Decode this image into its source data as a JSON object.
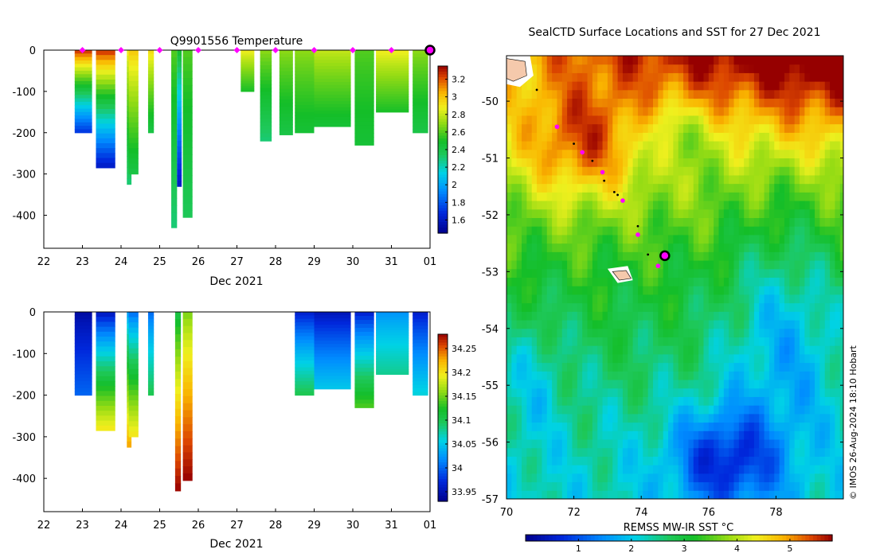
{
  "chart_data": [
    {
      "type": "heatmap",
      "id": "temperature-profile",
      "title": "Q9901556  Temperature",
      "xlabel": "Dec 2021",
      "ylabel": "",
      "xlim": [
        22,
        32
      ],
      "ylim": [
        -480,
        0
      ],
      "xticks": [
        "22",
        "23",
        "24",
        "25",
        "26",
        "27",
        "28",
        "29",
        "30",
        "31",
        "01"
      ],
      "yticks": [
        "0",
        "-100",
        "-200",
        "-300",
        "-400"
      ],
      "colorbar": {
        "min": 1.45,
        "max": 3.35,
        "ticks": [
          "1.6",
          "1.8",
          "2",
          "2.2",
          "2.4",
          "2.6",
          "2.8",
          "3",
          "3.2"
        ]
      },
      "surfacings": [
        23,
        24,
        25,
        26,
        27,
        28,
        29,
        30,
        31
      ],
      "current_position_day": 32,
      "profiles": [
        {
          "x": 22.8,
          "w": 0.45,
          "depth": -200,
          "surface": 3.3,
          "deep": 1.7
        },
        {
          "x": 23.35,
          "w": 0.5,
          "depth": -285,
          "surface": 3.3,
          "deep": 1.6
        },
        {
          "x": 24.15,
          "w": 0.12,
          "depth": -325,
          "surface": 2.9,
          "deep": 2.3
        },
        {
          "x": 24.2,
          "w": 0.25,
          "depth": -300,
          "surface": 3.0,
          "deep": 2.4
        },
        {
          "x": 24.7,
          "w": 0.15,
          "depth": -200,
          "surface": 2.95,
          "deep": 2.4
        },
        {
          "x": 25.3,
          "w": 0.15,
          "depth": -430,
          "surface": 2.6,
          "deep": 2.3
        },
        {
          "x": 25.45,
          "w": 0.12,
          "depth": -330,
          "surface": 2.5,
          "deep": 1.6
        },
        {
          "x": 25.6,
          "w": 0.25,
          "depth": -405,
          "surface": 2.6,
          "deep": 2.35
        },
        {
          "x": 27.1,
          "w": 0.35,
          "depth": -100,
          "surface": 2.9,
          "deep": 2.5
        },
        {
          "x": 27.6,
          "w": 0.3,
          "depth": -220,
          "surface": 2.7,
          "deep": 2.3
        },
        {
          "x": 28.1,
          "w": 0.35,
          "depth": -205,
          "surface": 2.7,
          "deep": 2.4
        },
        {
          "x": 28.5,
          "w": 0.5,
          "depth": -200,
          "surface": 2.7,
          "deep": 2.45
        },
        {
          "x": 29.0,
          "w": 0.95,
          "depth": -185,
          "surface": 2.8,
          "deep": 2.45
        },
        {
          "x": 30.05,
          "w": 0.5,
          "depth": -230,
          "surface": 2.6,
          "deep": 2.45
        },
        {
          "x": 30.6,
          "w": 0.85,
          "depth": -150,
          "surface": 2.9,
          "deep": 2.5
        },
        {
          "x": 31.55,
          "w": 0.4,
          "depth": -200,
          "surface": 2.7,
          "deep": 2.4
        }
      ]
    },
    {
      "type": "heatmap",
      "id": "salinity-profile",
      "title": "",
      "xlabel": "Dec 2021",
      "ylabel": "",
      "xlim": [
        22,
        32
      ],
      "ylim": [
        -480,
        0
      ],
      "xticks": [
        "22",
        "23",
        "24",
        "25",
        "26",
        "27",
        "28",
        "29",
        "30",
        "31",
        "01"
      ],
      "yticks": [
        "0",
        "-100",
        "-200",
        "-300",
        "-400"
      ],
      "colorbar": {
        "min": 33.93,
        "max": 34.28,
        "ticks": [
          "33.95",
          "34",
          "34.05",
          "34.1",
          "34.15",
          "34.2",
          "34.25"
        ]
      },
      "profiles": [
        {
          "x": 22.8,
          "w": 0.45,
          "depth": -200,
          "surface": 33.94,
          "deep": 34.0
        },
        {
          "x": 23.35,
          "w": 0.5,
          "depth": -285,
          "surface": 33.95,
          "deep": 34.2
        },
        {
          "x": 24.15,
          "w": 0.12,
          "depth": -325,
          "surface": 34.02,
          "deep": 34.23
        },
        {
          "x": 24.2,
          "w": 0.25,
          "depth": -300,
          "surface": 34.0,
          "deep": 34.2
        },
        {
          "x": 24.7,
          "w": 0.15,
          "depth": -200,
          "surface": 34.0,
          "deep": 34.1
        },
        {
          "x": 25.4,
          "w": 0.15,
          "depth": -430,
          "surface": 34.1,
          "deep": 34.28
        },
        {
          "x": 25.6,
          "w": 0.25,
          "depth": -405,
          "surface": 34.15,
          "deep": 34.28
        },
        {
          "x": 28.5,
          "w": 0.5,
          "depth": -200,
          "surface": 33.96,
          "deep": 34.1
        },
        {
          "x": 29.0,
          "w": 0.95,
          "depth": -185,
          "surface": 33.95,
          "deep": 34.05
        },
        {
          "x": 30.05,
          "w": 0.5,
          "depth": -230,
          "surface": 33.96,
          "deep": 34.14
        },
        {
          "x": 30.6,
          "w": 0.85,
          "depth": -150,
          "surface": 34.02,
          "deep": 34.08
        },
        {
          "x": 31.55,
          "w": 0.4,
          "depth": -200,
          "surface": 33.96,
          "deep": 34.06
        }
      ]
    },
    {
      "type": "heatmap",
      "id": "sst-map",
      "title": "SealCTD Surface Locations and SST for 27 Dec 2021",
      "xlabel": "",
      "ylabel": "",
      "xlim": [
        70,
        80
      ],
      "ylim": [
        -57,
        -49.2
      ],
      "xticks": [
        "70",
        "72",
        "74",
        "76",
        "78"
      ],
      "yticks": [
        "-50",
        "-51",
        "-52",
        "-53",
        "-54",
        "-55",
        "-56",
        "-57"
      ],
      "colorbar_label": "REMSS MW-IR SST °C",
      "colorbar": {
        "min": 0,
        "max": 5.8,
        "ticks": [
          "1",
          "2",
          "3",
          "4",
          "5"
        ]
      },
      "surface_locations_magenta": [
        {
          "lon": 71.5,
          "lat": -50.45
        },
        {
          "lon": 72.25,
          "lat": -50.9
        },
        {
          "lon": 72.85,
          "lat": -51.25
        },
        {
          "lon": 73.45,
          "lat": -51.75
        },
        {
          "lon": 73.9,
          "lat": -52.35
        },
        {
          "lon": 74.5,
          "lat": -52.9
        }
      ],
      "track_points_black": [
        {
          "lon": 70.9,
          "lat": -49.8
        },
        {
          "lon": 72.0,
          "lat": -50.75
        },
        {
          "lon": 72.55,
          "lat": -51.05
        },
        {
          "lon": 72.9,
          "lat": -51.4
        },
        {
          "lon": 73.2,
          "lat": -51.6
        },
        {
          "lon": 73.3,
          "lat": -51.65
        },
        {
          "lon": 73.9,
          "lat": -52.2
        },
        {
          "lon": 74.2,
          "lat": -52.7
        }
      ],
      "current_location": {
        "lon": 74.7,
        "lat": -52.72
      }
    }
  ],
  "credit": "© IMOS 26-Aug-2024 18:10 Hobart",
  "colors": {
    "marker_magenta": "#ff00ff",
    "land_fill": "#f5c9ac",
    "ice_white": "#ffffff"
  }
}
